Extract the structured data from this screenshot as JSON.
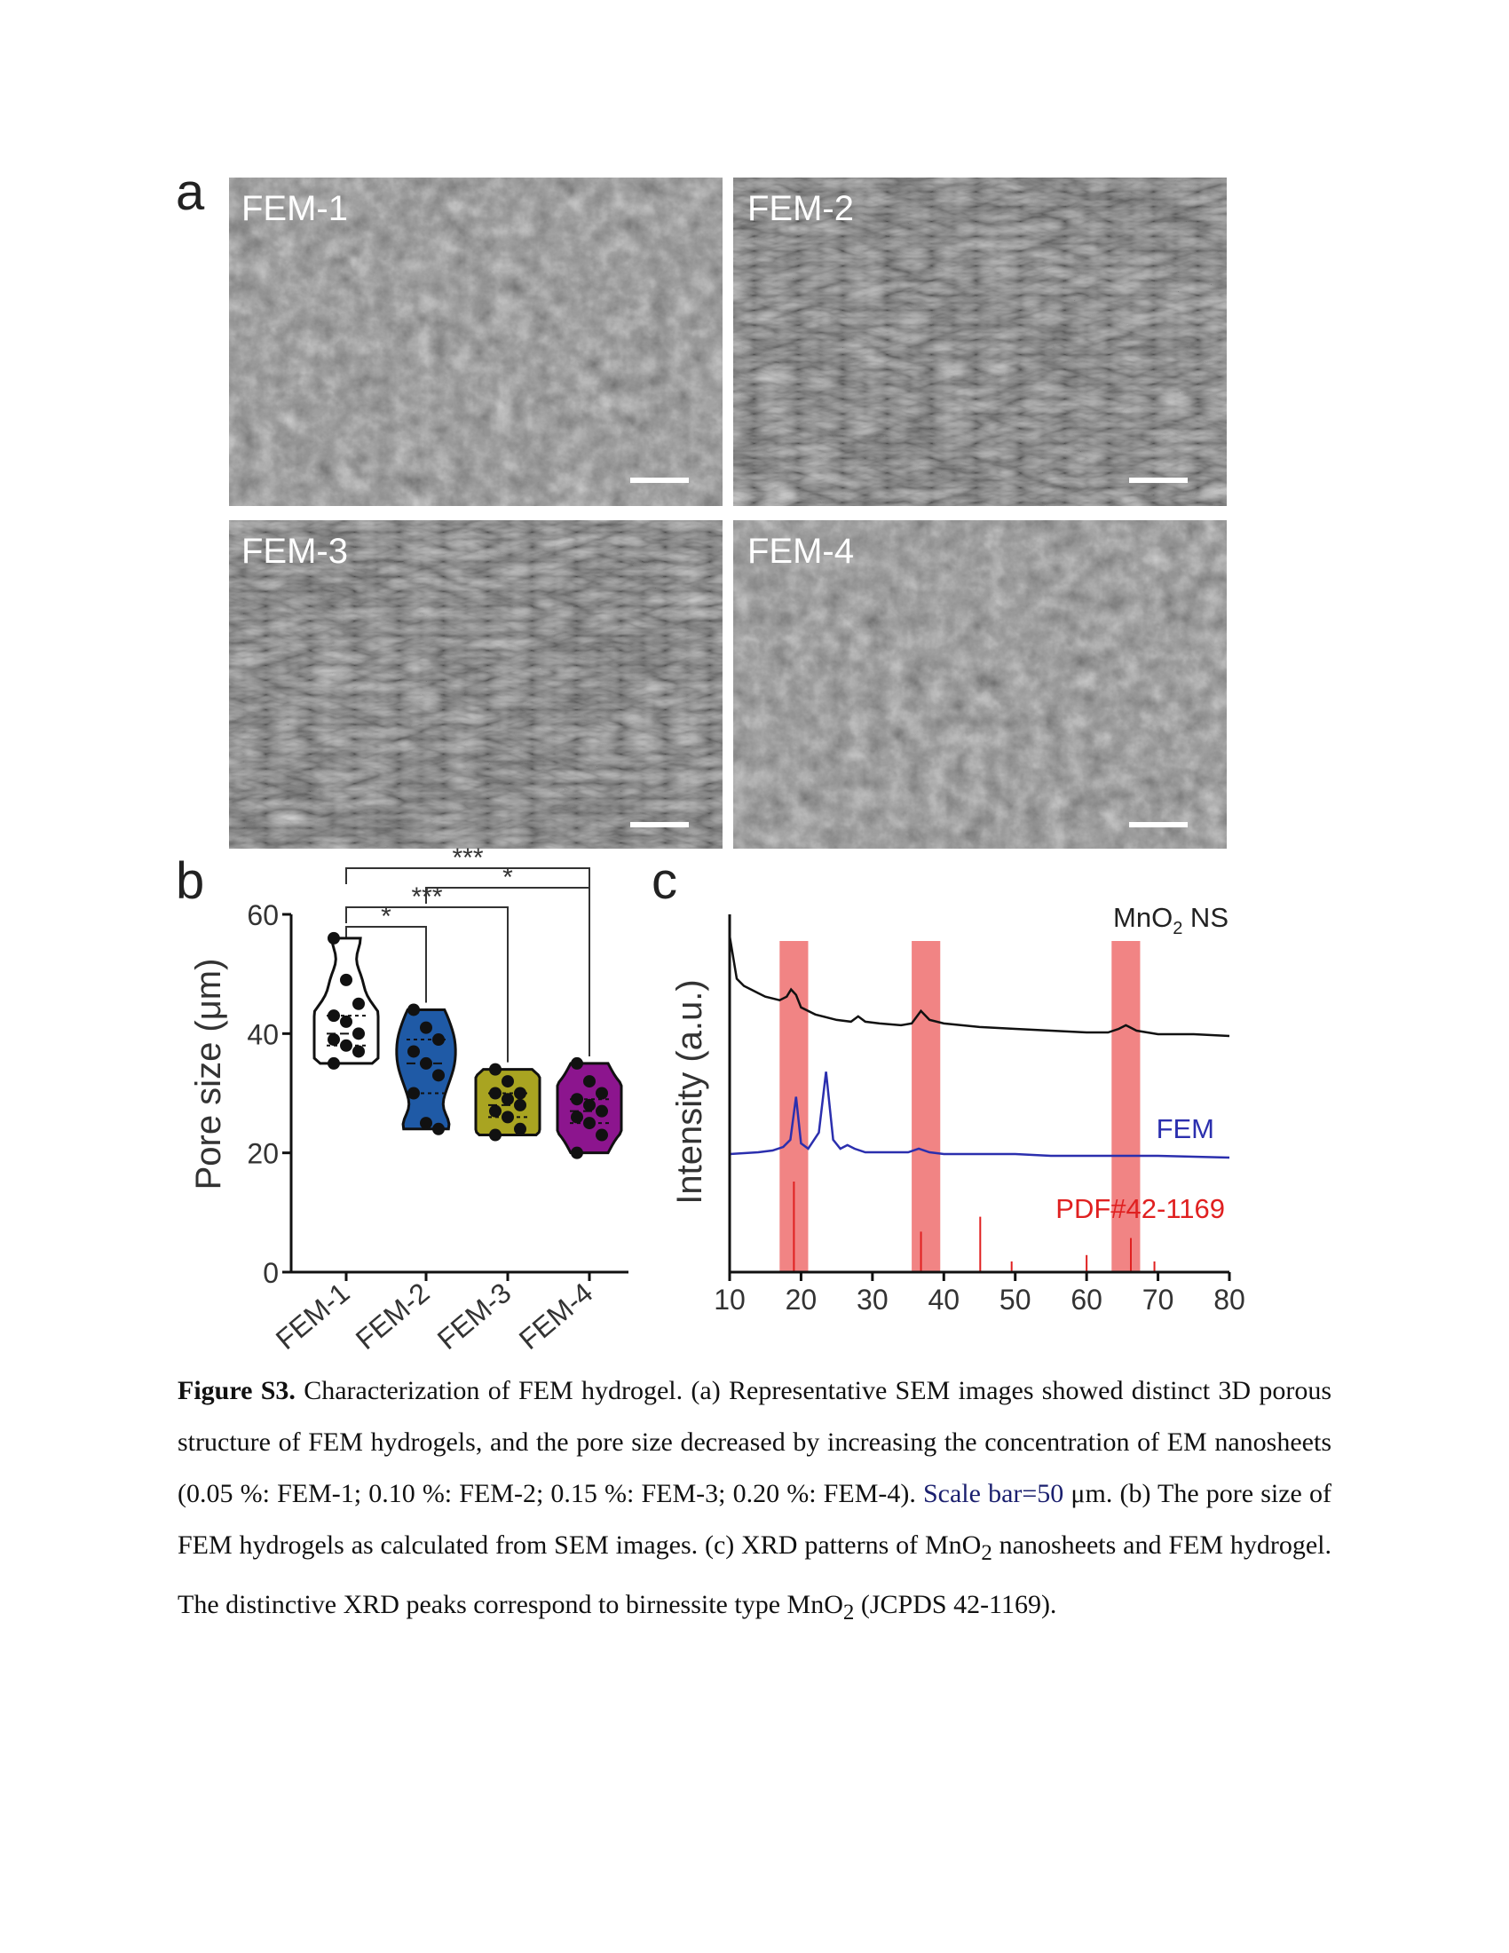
{
  "panel_a": {
    "letter": "a",
    "images": [
      {
        "label": "FEM-1"
      },
      {
        "label": "FEM-2"
      },
      {
        "label": "FEM-3"
      },
      {
        "label": "FEM-4"
      }
    ]
  },
  "panel_b": {
    "letter": "b"
  },
  "panel_c": {
    "letter": "c"
  },
  "chart_data": [
    {
      "type": "violin",
      "ylabel": "Pore size (μm)",
      "ylim": [
        0,
        60
      ],
      "yticks": [
        0,
        20,
        40,
        60
      ],
      "categories": [
        "FEM-1",
        "FEM-2",
        "FEM-3",
        "FEM-4"
      ],
      "colors": [
        "#ffffff",
        "#1f5aa6",
        "#a9a421",
        "#8c158e"
      ],
      "points": [
        [
          56,
          49,
          45,
          43,
          42,
          40,
          39,
          38,
          37,
          35
        ],
        [
          44,
          41,
          39,
          37,
          35,
          33,
          30,
          25,
          24
        ],
        [
          34,
          32,
          30,
          30,
          29,
          28,
          27,
          26,
          24,
          23
        ],
        [
          35,
          32,
          30,
          29,
          28,
          27,
          26,
          25,
          23,
          20
        ]
      ],
      "significance": [
        {
          "from": "FEM-1",
          "to": "FEM-4",
          "label": "***"
        },
        {
          "from": "FEM-2",
          "to": "FEM-4",
          "label": "*"
        },
        {
          "from": "FEM-1",
          "to": "FEM-3",
          "label": "***"
        },
        {
          "from": "FEM-1",
          "to": "FEM-2",
          "label": "*"
        }
      ]
    },
    {
      "type": "line",
      "xlabel": "",
      "ylabel": "Intensity (a.u.)",
      "xlim": [
        10,
        80
      ],
      "xticks": [
        10,
        20,
        30,
        40,
        50,
        60,
        70,
        80
      ],
      "highlight_bands": [
        [
          17,
          21
        ],
        [
          35.5,
          39.5
        ],
        [
          63.5,
          67.5
        ]
      ],
      "series": [
        {
          "name": "MnO₂ NS",
          "color": "#111111",
          "x": [
            10,
            11,
            12,
            13,
            14,
            15,
            16,
            17,
            18,
            18.6,
            19.3,
            20,
            22,
            25,
            27,
            28,
            29,
            31,
            34,
            35.5,
            36.8,
            38,
            40,
            45,
            50,
            55,
            60,
            63,
            64.5,
            65.5,
            67,
            70,
            75,
            80
          ],
          "y": [
            0.94,
            0.82,
            0.8,
            0.79,
            0.78,
            0.77,
            0.765,
            0.76,
            0.77,
            0.79,
            0.775,
            0.74,
            0.72,
            0.705,
            0.7,
            0.715,
            0.7,
            0.695,
            0.69,
            0.695,
            0.73,
            0.705,
            0.695,
            0.685,
            0.68,
            0.675,
            0.67,
            0.67,
            0.68,
            0.69,
            0.675,
            0.665,
            0.665,
            0.66
          ]
        },
        {
          "name": "FEM",
          "color": "#2b2fae",
          "x": [
            10,
            14,
            16,
            17.5,
            18.5,
            19.3,
            20,
            21,
            22.5,
            23.5,
            24.5,
            25.5,
            26.5,
            27.5,
            29,
            32,
            35,
            36.5,
            38,
            40,
            45,
            50,
            55,
            60,
            65,
            70,
            80
          ],
          "y": [
            0.33,
            0.335,
            0.34,
            0.35,
            0.37,
            0.49,
            0.36,
            0.345,
            0.39,
            0.56,
            0.37,
            0.345,
            0.355,
            0.345,
            0.335,
            0.335,
            0.335,
            0.345,
            0.335,
            0.33,
            0.33,
            0.33,
            0.325,
            0.325,
            0.325,
            0.325,
            0.32
          ]
        }
      ],
      "reference": {
        "name": "PDF#42-1169",
        "color": "#e02020",
        "x": [
          19.0,
          36.8,
          45.1,
          49.5,
          60.0,
          66.2,
          69.5
        ],
        "h": [
          0.85,
          0.38,
          0.52,
          0.1,
          0.16,
          0.32,
          0.1
        ]
      }
    }
  ],
  "caption": {
    "fig_label": "Figure S3.",
    "part1": " Characterization of FEM hydrogel. (a) Representative SEM images showed distinct 3D porous structure of FEM hydrogels, and the pore size decreased by increasing the concentration of EM nanosheets (0.05 %: FEM-1; 0.10 %: FEM-2; 0.15 %: FEM-3; 0.20 %: FEM-4). ",
    "scale": "Scale bar=50",
    "part2": " μm. (b) The pore size of FEM hydrogels as calculated from SEM images. (c) XRD patterns of MnO",
    "sub1": "2",
    "part3": " nanosheets and FEM hydrogel. The distinctive XRD peaks correspond to birnessite type MnO",
    "sub2": "2",
    "part4": " (JCPDS 42-1169)."
  }
}
